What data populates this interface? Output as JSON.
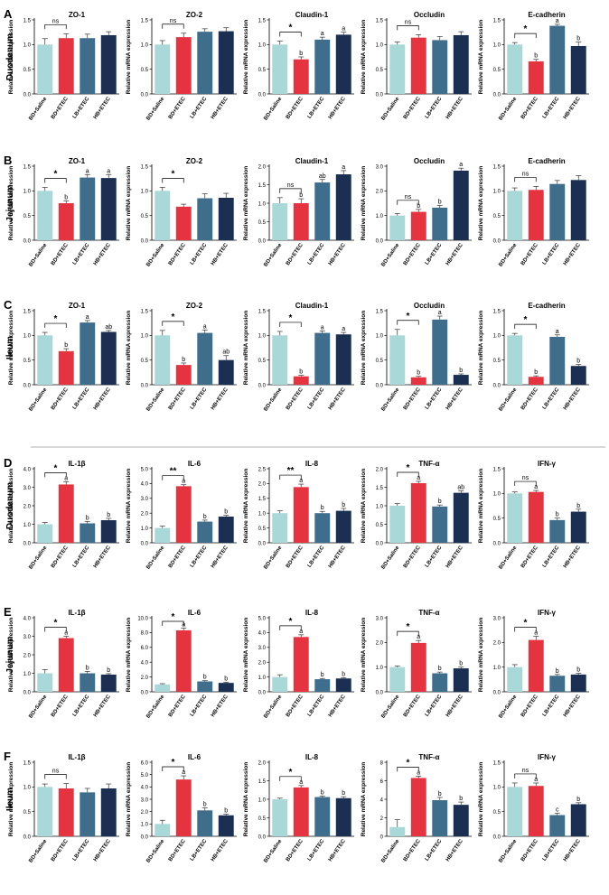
{
  "figure": {
    "panels": [
      {
        "letter": "A",
        "tissue": "Duodenum"
      },
      {
        "letter": "B",
        "tissue": "Jejunum"
      },
      {
        "letter": "C",
        "tissue": "Ileum"
      },
      {
        "letter": "D",
        "tissue": "Duodenum"
      },
      {
        "letter": "E",
        "tissue": "Jejunum"
      },
      {
        "letter": "F",
        "tissue": "Ileum"
      }
    ],
    "colors": [
      "#a8d8d8",
      "#e5333f",
      "#3f6d8c",
      "#1a2f52"
    ]
  },
  "chart_data": [
    {
      "type": "bar",
      "row": 0,
      "title": "ZO-1",
      "ylabel": "Relative mRNA expression",
      "categories": [
        "BD+Saline",
        "BD+ETEC",
        "LB+ETEC",
        "HB+ETEC"
      ],
      "values": [
        1.0,
        1.13,
        1.13,
        1.19
      ],
      "errors": [
        0.12,
        0.09,
        0.08,
        0.07
      ],
      "letters": [
        "",
        "",
        "",
        ""
      ],
      "ylim": [
        0,
        1.5
      ],
      "ticks": [
        "0.0",
        "0.5",
        "1.0",
        "1.5"
      ],
      "sig": "ns"
    },
    {
      "type": "bar",
      "row": 0,
      "title": "ZO-2",
      "ylabel": "Relative mRNA expression",
      "categories": [
        "BD+Saline",
        "BD+ETEC",
        "LB+ETEC",
        "HB+ETEC"
      ],
      "values": [
        1.0,
        1.15,
        1.26,
        1.27
      ],
      "errors": [
        0.08,
        0.08,
        0.06,
        0.07
      ],
      "letters": [
        "",
        "",
        "",
        ""
      ],
      "ylim": [
        0,
        1.5
      ],
      "ticks": [
        "0.0",
        "0.5",
        "1.0",
        "1.5"
      ],
      "sig": "ns"
    },
    {
      "type": "bar",
      "row": 0,
      "title": "Claudin-1",
      "ylabel": "Relative mRNA expression",
      "categories": [
        "BD+Saline",
        "BD+ETEC",
        "LB+ETEC",
        "HB+ETEC"
      ],
      "values": [
        1.0,
        0.7,
        1.1,
        1.2
      ],
      "errors": [
        0.07,
        0.05,
        0.05,
        0.05
      ],
      "letters": [
        "",
        "b",
        "a",
        "a"
      ],
      "ylim": [
        0,
        1.5
      ],
      "ticks": [
        "0.0",
        "0.5",
        "1.0",
        "1.5"
      ],
      "sig": "*"
    },
    {
      "type": "bar",
      "row": 0,
      "title": "Occludin",
      "ylabel": "Relative mRNA expression",
      "categories": [
        "BD+Saline",
        "BD+ETEC",
        "LB+ETEC",
        "HB+ETEC"
      ],
      "values": [
        1.0,
        1.14,
        1.09,
        1.19
      ],
      "errors": [
        0.05,
        0.06,
        0.07,
        0.07
      ],
      "letters": [
        "",
        "",
        "",
        ""
      ],
      "ylim": [
        0,
        1.5
      ],
      "ticks": [
        "0.0",
        "0.5",
        "1.0",
        "1.5"
      ],
      "sig": "ns"
    },
    {
      "type": "bar",
      "row": 0,
      "title": "E-cadherin",
      "ylabel": "Relative mRNA expression",
      "categories": [
        "BD+Saline",
        "BD+ETEC",
        "LB+ETEC",
        "HB+ETEC"
      ],
      "values": [
        1.0,
        0.66,
        1.38,
        0.97
      ],
      "errors": [
        0.04,
        0.04,
        0.03,
        0.08
      ],
      "letters": [
        "",
        "b",
        "a",
        "b"
      ],
      "ylim": [
        0,
        1.5
      ],
      "ticks": [
        "0.0",
        "0.5",
        "1.0",
        "1.5"
      ],
      "sig": "*"
    },
    {
      "type": "bar",
      "row": 1,
      "title": "ZO-1",
      "ylabel": "Relative mRNA expression",
      "categories": [
        "BD+Saline",
        "BD+ETEC",
        "LB+ETEC",
        "HB+ETEC"
      ],
      "values": [
        1.0,
        0.75,
        1.27,
        1.26
      ],
      "errors": [
        0.07,
        0.05,
        0.06,
        0.07
      ],
      "letters": [
        "",
        "b",
        "a",
        "a"
      ],
      "ylim": [
        0,
        1.5
      ],
      "ticks": [
        "0.0",
        "0.5",
        "1.0",
        "1.5"
      ],
      "sig": "*"
    },
    {
      "type": "bar",
      "row": 1,
      "title": "ZO-2",
      "ylabel": "Relative mRNA expression",
      "categories": [
        "BD+Saline",
        "BD+ETEC",
        "LB+ETEC",
        "HB+ETEC"
      ],
      "values": [
        1.0,
        0.68,
        0.85,
        0.86
      ],
      "errors": [
        0.07,
        0.05,
        0.09,
        0.09
      ],
      "letters": [
        "",
        "",
        "",
        ""
      ],
      "ylim": [
        0,
        1.5
      ],
      "ticks": [
        "0.0",
        "0.5",
        "1.0",
        "1.5"
      ],
      "sig": "*"
    },
    {
      "type": "bar",
      "row": 1,
      "title": "Claudin-1",
      "ylabel": "Relative mRNA expression",
      "categories": [
        "BD+Saline",
        "BD+ETEC",
        "LB+ETEC",
        "HB+ETEC"
      ],
      "values": [
        1.0,
        1.0,
        1.56,
        1.78
      ],
      "errors": [
        0.15,
        0.12,
        0.08,
        0.1
      ],
      "letters": [
        "",
        "b",
        "ab",
        "a"
      ],
      "ylim": [
        0,
        2.0
      ],
      "ticks": [
        "0.0",
        "0.5",
        "1.0",
        "1.5",
        "2.0"
      ],
      "sig": "ns"
    },
    {
      "type": "bar",
      "row": 1,
      "title": "Occludin",
      "ylabel": "Relative mRNA expression",
      "categories": [
        "BD+Saline",
        "BD+ETEC",
        "LB+ETEC",
        "HB+ETEC"
      ],
      "values": [
        1.0,
        1.15,
        1.32,
        2.82
      ],
      "errors": [
        0.08,
        0.1,
        0.09,
        0.1
      ],
      "letters": [
        "",
        "b",
        "b",
        "a"
      ],
      "ylim": [
        0,
        3.0
      ],
      "ticks": [
        "0.0",
        "1.0",
        "2.0",
        "3.0"
      ],
      "sig": "ns"
    },
    {
      "type": "bar",
      "row": 1,
      "title": "E-cadherin",
      "ylabel": "Relative mRNA expression",
      "categories": [
        "BD+Saline",
        "BD+ETEC",
        "LB+ETEC",
        "HB+ETEC"
      ],
      "values": [
        1.0,
        1.02,
        1.14,
        1.22
      ],
      "errors": [
        0.06,
        0.07,
        0.07,
        0.09
      ],
      "letters": [
        "",
        "",
        "",
        ""
      ],
      "ylim": [
        0,
        1.5
      ],
      "ticks": [
        "0.0",
        "0.5",
        "1.0",
        "1.5"
      ],
      "sig": "ns"
    },
    {
      "type": "bar",
      "row": 2,
      "title": "ZO-1",
      "ylabel": "Relative mRNA expression",
      "categories": [
        "BD+Saline",
        "BD+ETEC",
        "LB+ETEC",
        "HB+ETEC"
      ],
      "values": [
        1.0,
        0.68,
        1.26,
        1.07
      ],
      "errors": [
        0.06,
        0.05,
        0.04,
        0.03
      ],
      "letters": [
        "",
        "b",
        "a",
        "ab"
      ],
      "ylim": [
        0,
        1.5
      ],
      "ticks": [
        "0.0",
        "0.5",
        "1.0",
        "1.5"
      ],
      "sig": "*"
    },
    {
      "type": "bar",
      "row": 2,
      "title": "ZO-2",
      "ylabel": "Relative mRNA expression",
      "categories": [
        "BD+Saline",
        "BD+ETEC",
        "LB+ETEC",
        "HB+ETEC"
      ],
      "values": [
        1.0,
        0.4,
        1.05,
        0.5
      ],
      "errors": [
        0.1,
        0.04,
        0.06,
        0.09
      ],
      "letters": [
        "",
        "b",
        "a",
        "ab"
      ],
      "ylim": [
        0,
        1.5
      ],
      "ticks": [
        "0.0",
        "0.5",
        "1.0",
        "1.5"
      ],
      "sig": "*"
    },
    {
      "type": "bar",
      "row": 2,
      "title": "Claudin-1",
      "ylabel": "Relative mRNA expression",
      "categories": [
        "BD+Saline",
        "BD+ETEC",
        "LB+ETEC",
        "HB+ETEC"
      ],
      "values": [
        1.0,
        0.17,
        1.05,
        1.02
      ],
      "errors": [
        0.08,
        0.02,
        0.04,
        0.04
      ],
      "letters": [
        "",
        "b",
        "a",
        "a"
      ],
      "ylim": [
        0,
        1.5
      ],
      "ticks": [
        "0.0",
        "0.5",
        "1.0",
        "1.5"
      ],
      "sig": "*"
    },
    {
      "type": "bar",
      "row": 2,
      "title": "Occludin",
      "ylabel": "Relative mRNA expression",
      "categories": [
        "BD+Saline",
        "BD+ETEC",
        "LB+ETEC",
        "HB+ETEC"
      ],
      "values": [
        1.0,
        0.15,
        1.32,
        0.2
      ],
      "errors": [
        0.12,
        0.02,
        0.07,
        0.02
      ],
      "letters": [
        "",
        "b",
        "a",
        "b"
      ],
      "ylim": [
        0,
        1.5
      ],
      "ticks": [
        "0.0",
        "0.5",
        "1.0",
        "1.5"
      ],
      "sig": "*"
    },
    {
      "type": "bar",
      "row": 2,
      "title": "E-cadherin",
      "ylabel": "Relative mRNA expression",
      "categories": [
        "BD+Saline",
        "BD+ETEC",
        "LB+ETEC",
        "HB+ETEC"
      ],
      "values": [
        1.0,
        0.16,
        0.97,
        0.38
      ],
      "errors": [
        0.04,
        0.02,
        0.04,
        0.03
      ],
      "letters": [
        "",
        "b",
        "a",
        "b"
      ],
      "ylim": [
        0,
        1.5
      ],
      "ticks": [
        "0.0",
        "0.5",
        "1.0",
        "1.5"
      ],
      "sig": "*"
    },
    {
      "type": "bar",
      "row": 3,
      "title": "IL-1β",
      "ylabel": "Relative mRNA expression",
      "categories": [
        "BD+Saline",
        "BD+ETEC",
        "LB+ETEC",
        "HB+ETEC"
      ],
      "values": [
        1.0,
        3.15,
        1.05,
        1.22
      ],
      "errors": [
        0.1,
        0.15,
        0.1,
        0.1
      ],
      "letters": [
        "",
        "a",
        "b",
        "b"
      ],
      "ylim": [
        0,
        4.0
      ],
      "ticks": [
        "0.0",
        "1.0",
        "2.0",
        "3.0",
        "4.0"
      ],
      "sig": "*"
    },
    {
      "type": "bar",
      "row": 3,
      "title": "IL-6",
      "ylabel": "Relative mRNA expression",
      "categories": [
        "BD+Saline",
        "BD+ETEC",
        "LB+ETEC",
        "HB+ETEC"
      ],
      "values": [
        1.0,
        3.82,
        1.43,
        1.77
      ],
      "errors": [
        0.12,
        0.1,
        0.1,
        0.08
      ],
      "letters": [
        "",
        "a",
        "b",
        "b"
      ],
      "ylim": [
        0,
        5.0
      ],
      "ticks": [
        "0.0",
        "1.0",
        "2.0",
        "3.0",
        "4.0",
        "5.0"
      ],
      "sig": "**"
    },
    {
      "type": "bar",
      "row": 3,
      "title": "IL-8",
      "ylabel": "Relative mRNA expression",
      "categories": [
        "BD+Saline",
        "BD+ETEC",
        "LB+ETEC",
        "HB+ETEC"
      ],
      "values": [
        1.0,
        1.88,
        1.0,
        1.08
      ],
      "errors": [
        0.08,
        0.1,
        0.06,
        0.08
      ],
      "letters": [
        "",
        "a",
        "b",
        "b"
      ],
      "ylim": [
        0,
        2.5
      ],
      "ticks": [
        "0.0",
        "0.5",
        "1.0",
        "1.5",
        "2.0",
        "2.5"
      ],
      "sig": "**"
    },
    {
      "type": "bar",
      "row": 3,
      "title": "TNF-α",
      "ylabel": "Relative mRNA expression",
      "categories": [
        "BD+Saline",
        "BD+ETEC",
        "LB+ETEC",
        "HB+ETEC"
      ],
      "values": [
        1.0,
        1.61,
        0.98,
        1.35
      ],
      "errors": [
        0.06,
        0.05,
        0.04,
        0.05
      ],
      "letters": [
        "",
        "a",
        "b",
        "ab"
      ],
      "ylim": [
        0,
        2.0
      ],
      "ticks": [
        "0.0",
        "0.5",
        "1.0",
        "1.5",
        "2.0"
      ],
      "sig": "*"
    },
    {
      "type": "bar",
      "row": 3,
      "title": "IFN-γ",
      "ylabel": "Relative mRNA expression",
      "categories": [
        "BD+Saline",
        "BD+ETEC",
        "LB+ETEC",
        "HB+ETEC"
      ],
      "values": [
        1.0,
        1.03,
        0.46,
        0.63
      ],
      "errors": [
        0.03,
        0.03,
        0.04,
        0.05
      ],
      "letters": [
        "",
        "a",
        "b",
        "b"
      ],
      "ylim": [
        0,
        1.5
      ],
      "ticks": [
        "0.0",
        "0.5",
        "1.0",
        "1.5"
      ],
      "sig": "ns"
    },
    {
      "type": "bar",
      "row": 4,
      "title": "IL-1β",
      "ylabel": "Relative mRNA expression",
      "categories": [
        "BD+Saline",
        "BD+ETEC",
        "LB+ETEC",
        "HB+ETEC"
      ],
      "values": [
        1.0,
        2.9,
        1.0,
        0.93
      ],
      "errors": [
        0.2,
        0.1,
        0.1,
        0.05
      ],
      "letters": [
        "",
        "a",
        "b",
        "b"
      ],
      "ylim": [
        0,
        4.0
      ],
      "ticks": [
        "0.0",
        "1.0",
        "2.0",
        "3.0",
        "4.0"
      ],
      "sig": "*"
    },
    {
      "type": "bar",
      "row": 4,
      "title": "IL-6",
      "ylabel": "Relative mRNA expression",
      "categories": [
        "BD+Saline",
        "BD+ETEC",
        "LB+ETEC",
        "HB+ETEC"
      ],
      "values": [
        1.0,
        8.3,
        1.4,
        1.2
      ],
      "errors": [
        0.1,
        0.3,
        0.1,
        0.1
      ],
      "letters": [
        "",
        "a",
        "b",
        "b"
      ],
      "ylim": [
        0,
        10.0
      ],
      "ticks": [
        "0.0",
        "2.0",
        "4.0",
        "6.0",
        "8.0",
        "10.0"
      ],
      "sig": "*"
    },
    {
      "type": "bar",
      "row": 4,
      "title": "IL-8",
      "ylabel": "Relative mRNA expression",
      "categories": [
        "BD+Saline",
        "BD+ETEC",
        "LB+ETEC",
        "HB+ETEC"
      ],
      "values": [
        1.0,
        3.7,
        0.85,
        0.9
      ],
      "errors": [
        0.15,
        0.15,
        0.05,
        0.05
      ],
      "letters": [
        "",
        "a",
        "b",
        "b"
      ],
      "ylim": [
        0,
        5.0
      ],
      "ticks": [
        "0.0",
        "1.0",
        "2.0",
        "3.0",
        "4.0",
        "5.0"
      ],
      "sig": "*"
    },
    {
      "type": "bar",
      "row": 4,
      "title": "TNF-α",
      "ylabel": "Relative mRNA expression",
      "categories": [
        "BD+Saline",
        "BD+ETEC",
        "LB+ETEC",
        "HB+ETEC"
      ],
      "values": [
        1.0,
        1.98,
        0.75,
        0.95
      ],
      "errors": [
        0.05,
        0.1,
        0.05,
        0.05
      ],
      "letters": [
        "",
        "a",
        "b",
        "b"
      ],
      "ylim": [
        0,
        3.0
      ],
      "ticks": [
        "0.0",
        "1.0",
        "2.0",
        "3.0"
      ],
      "sig": "*"
    },
    {
      "type": "bar",
      "row": 4,
      "title": "IFN-γ",
      "ylabel": "Relative mRNA expression",
      "categories": [
        "BD+Saline",
        "BD+ETEC",
        "LB+ETEC",
        "HB+ETEC"
      ],
      "values": [
        1.0,
        2.1,
        0.65,
        0.7
      ],
      "errors": [
        0.1,
        0.15,
        0.05,
        0.05
      ],
      "letters": [
        "",
        "a",
        "b",
        "b"
      ],
      "ylim": [
        0,
        3.0
      ],
      "ticks": [
        "0.0",
        "1.0",
        "2.0",
        "3.0"
      ],
      "sig": "*"
    },
    {
      "type": "bar",
      "row": 5,
      "title": "IL-1β",
      "ylabel": "Relative mRNA expression",
      "categories": [
        "BD+Saline",
        "BD+ETEC",
        "LB+ETEC",
        "HB+ETEC"
      ],
      "values": [
        1.0,
        0.97,
        0.89,
        0.97
      ],
      "errors": [
        0.06,
        0.1,
        0.08,
        0.09
      ],
      "letters": [
        "",
        "",
        "",
        ""
      ],
      "ylim": [
        0,
        1.5
      ],
      "ticks": [
        "0.0",
        "0.5",
        "1.0",
        "1.5"
      ],
      "sig": "ns"
    },
    {
      "type": "bar",
      "row": 5,
      "title": "IL-6",
      "ylabel": "Relative mRNA expression",
      "categories": [
        "BD+Saline",
        "BD+ETEC",
        "LB+ETEC",
        "HB+ETEC"
      ],
      "values": [
        1.0,
        4.6,
        2.1,
        1.7
      ],
      "errors": [
        0.3,
        0.3,
        0.2,
        0.1
      ],
      "letters": [
        "",
        "a",
        "b",
        "b"
      ],
      "ylim": [
        0,
        6.0
      ],
      "ticks": [
        "0.0",
        "1.0",
        "2.0",
        "3.0",
        "4.0",
        "5.0",
        "6.0"
      ],
      "sig": "*"
    },
    {
      "type": "bar",
      "row": 5,
      "title": "IL-8",
      "ylabel": "Relative mRNA expression",
      "categories": [
        "BD+Saline",
        "BD+ETEC",
        "LB+ETEC",
        "HB+ETEC"
      ],
      "values": [
        1.0,
        1.32,
        1.06,
        1.03
      ],
      "errors": [
        0.03,
        0.05,
        0.03,
        0.04
      ],
      "letters": [
        "",
        "a",
        "b",
        "b"
      ],
      "ylim": [
        0,
        2.0
      ],
      "ticks": [
        "0.0",
        "0.5",
        "1.0",
        "1.5",
        "2.0"
      ],
      "sig": "*"
    },
    {
      "type": "bar",
      "row": 5,
      "title": "TNF-α",
      "ylabel": "Relative mRNA expression",
      "categories": [
        "BD+Saline",
        "BD+ETEC",
        "LB+ETEC",
        "HB+ETEC"
      ],
      "values": [
        1.0,
        6.3,
        3.9,
        3.4
      ],
      "errors": [
        0.8,
        0.2,
        0.3,
        0.3
      ],
      "letters": [
        "",
        "a",
        "b",
        "b"
      ],
      "ylim": [
        0,
        8.0
      ],
      "ticks": [
        "0",
        "2",
        "4",
        "6",
        "8"
      ],
      "sig": "*"
    },
    {
      "type": "bar",
      "row": 5,
      "title": "IFN-γ",
      "ylabel": "Relative mRNA expression",
      "categories": [
        "BD+Saline",
        "BD+ETEC",
        "LB+ETEC",
        "HB+ETEC"
      ],
      "values": [
        1.0,
        1.02,
        0.43,
        0.65
      ],
      "errors": [
        0.08,
        0.06,
        0.04,
        0.03
      ],
      "letters": [
        "",
        "a",
        "c",
        "b"
      ],
      "ylim": [
        0,
        1.5
      ],
      "ticks": [
        "0.0",
        "0.5",
        "1.0",
        "1.5"
      ],
      "sig": "ns"
    }
  ]
}
